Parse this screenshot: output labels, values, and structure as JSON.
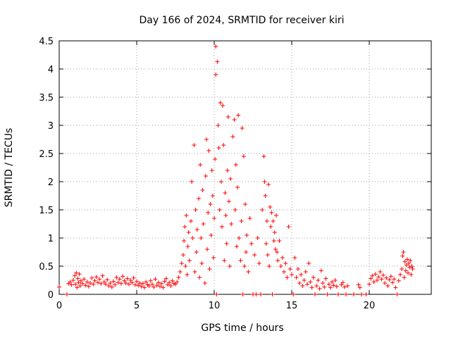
{
  "chart_data": {
    "type": "scatter",
    "title": "Day 166 of 2024, SRMTID for receiver kiri",
    "xlabel": "GPS time / hours",
    "ylabel": "SRMTID / TECUs",
    "xlim": [
      0,
      24
    ],
    "ylim": [
      0,
      4.5
    ],
    "grid": true,
    "marker": "+",
    "color": "#ff0000",
    "x_ticks": [
      0,
      5,
      10,
      15,
      20
    ],
    "x_tick_labels": [
      "0",
      "5",
      "10",
      "15",
      "20"
    ],
    "y_ticks": [
      0,
      0.5,
      1,
      1.5,
      2,
      2.5,
      3,
      3.5,
      4,
      4.5
    ],
    "y_tick_labels": [
      "0",
      "0.5",
      "1",
      "1.5",
      "2",
      "2.5",
      "3",
      "3.5",
      "4",
      "4.5"
    ],
    "series": [
      {
        "name": "SRMTID",
        "points": [
          [
            0.0,
            0.13
          ],
          [
            0.5,
            0.0
          ],
          [
            0.6,
            0.19
          ],
          [
            0.7,
            0.22
          ],
          [
            0.8,
            0.17
          ],
          [
            0.9,
            0.25
          ],
          [
            1.0,
            0.33
          ],
          [
            1.05,
            0.18
          ],
          [
            1.1,
            0.38
          ],
          [
            1.15,
            0.12
          ],
          [
            1.2,
            0.28
          ],
          [
            1.25,
            0.21
          ],
          [
            1.3,
            0.36
          ],
          [
            1.35,
            0.15
          ],
          [
            1.4,
            0.24
          ],
          [
            1.5,
            0.19
          ],
          [
            1.6,
            0.27
          ],
          [
            1.7,
            0.16
          ],
          [
            1.8,
            0.22
          ],
          [
            1.9,
            0.14
          ],
          [
            2.0,
            0.2
          ],
          [
            2.1,
            0.29
          ],
          [
            2.2,
            0.18
          ],
          [
            2.3,
            0.24
          ],
          [
            2.4,
            0.31
          ],
          [
            2.5,
            0.21
          ],
          [
            2.6,
            0.27
          ],
          [
            2.7,
            0.19
          ],
          [
            2.8,
            0.33
          ],
          [
            2.9,
            0.22
          ],
          [
            3.0,
            0.18
          ],
          [
            3.1,
            0.26
          ],
          [
            3.2,
            0.15
          ],
          [
            3.3,
            0.2
          ],
          [
            3.4,
            0.13
          ],
          [
            3.5,
            0.23
          ],
          [
            3.6,
            0.17
          ],
          [
            3.7,
            0.3
          ],
          [
            3.8,
            0.21
          ],
          [
            3.9,
            0.27
          ],
          [
            4.0,
            0.19
          ],
          [
            4.1,
            0.32
          ],
          [
            4.2,
            0.24
          ],
          [
            4.3,
            0.2
          ],
          [
            4.4,
            0.28
          ],
          [
            4.5,
            0.18
          ],
          [
            4.6,
            0.25
          ],
          [
            4.7,
            0.21
          ],
          [
            4.8,
            0.29
          ],
          [
            4.9,
            0.17
          ],
          [
            5.0,
            0.23
          ],
          [
            5.1,
            0.16
          ],
          [
            5.2,
            0.2
          ],
          [
            5.3,
            0.14
          ],
          [
            5.4,
            0.19
          ],
          [
            5.5,
            0.12
          ],
          [
            5.6,
            0.22
          ],
          [
            5.7,
            0.17
          ],
          [
            5.8,
            0.15
          ],
          [
            5.9,
            0.24
          ],
          [
            6.0,
            0.18
          ],
          [
            6.1,
            0.13
          ],
          [
            6.2,
            0.27
          ],
          [
            6.3,
            0.16
          ],
          [
            6.4,
            0.21
          ],
          [
            6.5,
            0.14
          ],
          [
            6.6,
            0.19
          ],
          [
            6.7,
            0.12
          ],
          [
            6.8,
            0.23
          ],
          [
            6.9,
            0.28
          ],
          [
            7.0,
            0.17
          ],
          [
            7.1,
            0.21
          ],
          [
            7.2,
            0.15
          ],
          [
            7.3,
            0.24
          ],
          [
            7.4,
            0.19
          ],
          [
            7.5,
            0.18
          ],
          [
            7.6,
            0.22
          ],
          [
            7.7,
            0.3
          ],
          [
            7.8,
            0.4
          ],
          [
            7.9,
            0.55
          ],
          [
            8.0,
            0.7
          ],
          [
            8.05,
            0.95
          ],
          [
            8.1,
            1.2
          ],
          [
            8.15,
            0.5
          ],
          [
            8.2,
            1.4
          ],
          [
            8.25,
            0.35
          ],
          [
            8.3,
            0.85
          ],
          [
            8.35,
            1.1
          ],
          [
            8.4,
            0.6
          ],
          [
            8.5,
            1.3
          ],
          [
            8.55,
            2.0
          ],
          [
            8.6,
            1.0
          ],
          [
            8.7,
            2.65
          ],
          [
            8.75,
            0.4
          ],
          [
            8.8,
            1.5
          ],
          [
            8.85,
            0.75
          ],
          [
            8.9,
            1.15
          ],
          [
            9.0,
            1.7
          ],
          [
            9.05,
            0.3
          ],
          [
            9.1,
            2.3
          ],
          [
            9.15,
            1.0
          ],
          [
            9.2,
            0.55
          ],
          [
            9.25,
            1.85
          ],
          [
            9.3,
            1.25
          ],
          [
            9.4,
            0.2
          ],
          [
            9.45,
            2.1
          ],
          [
            9.5,
            2.75
          ],
          [
            9.55,
            0.8
          ],
          [
            9.6,
            1.45
          ],
          [
            9.65,
            2.55
          ],
          [
            9.7,
            0.45
          ],
          [
            9.75,
            1.6
          ],
          [
            9.8,
            1.05
          ],
          [
            9.85,
            2.2
          ],
          [
            9.9,
            1.75
          ],
          [
            9.95,
            0.65
          ],
          [
            10.0,
            1.35
          ],
          [
            10.05,
            2.4
          ],
          [
            10.1,
            4.4
          ],
          [
            10.1,
            3.9
          ],
          [
            10.15,
            0.0
          ],
          [
            10.2,
            4.13
          ],
          [
            10.25,
            3.0
          ],
          [
            10.3,
            2.6
          ],
          [
            10.35,
            1.5
          ],
          [
            10.4,
            3.4
          ],
          [
            10.45,
            2.0
          ],
          [
            10.5,
            1.2
          ],
          [
            10.55,
            3.35
          ],
          [
            10.6,
            2.65
          ],
          [
            10.65,
            0.6
          ],
          [
            10.7,
            1.8
          ],
          [
            10.75,
            1.4
          ],
          [
            10.8,
            0.9
          ],
          [
            10.85,
            2.2
          ],
          [
            10.9,
            3.15
          ],
          [
            10.95,
            1.65
          ],
          [
            11.0,
            0.5
          ],
          [
            11.05,
            2.05
          ],
          [
            11.1,
            1.25
          ],
          [
            11.2,
            2.8
          ],
          [
            11.3,
            3.1
          ],
          [
            11.35,
            1.5
          ],
          [
            11.4,
            2.3
          ],
          [
            11.45,
            0.85
          ],
          [
            11.5,
            1.9
          ],
          [
            11.55,
            3.18
          ],
          [
            11.6,
            1.0
          ],
          [
            11.7,
            0.6
          ],
          [
            11.75,
            1.3
          ],
          [
            11.8,
            2.95
          ],
          [
            11.85,
            0.0
          ],
          [
            11.9,
            2.45
          ],
          [
            11.95,
            0.5
          ],
          [
            12.0,
            1.6
          ],
          [
            12.05,
            0.75
          ],
          [
            12.1,
            1.05
          ],
          [
            12.2,
            0.4
          ],
          [
            12.3,
            1.35
          ],
          [
            12.4,
            0.9
          ],
          [
            12.5,
            0.0
          ],
          [
            12.6,
            0.7
          ],
          [
            12.7,
            0.0
          ],
          [
            12.8,
            1.0
          ],
          [
            12.9,
            0.55
          ],
          [
            13.0,
            0.0
          ],
          [
            13.1,
            1.5
          ],
          [
            13.2,
            2.45
          ],
          [
            13.25,
            2.0
          ],
          [
            13.3,
            1.75
          ],
          [
            13.35,
            0.9
          ],
          [
            13.4,
            1.3
          ],
          [
            13.45,
            0.7
          ],
          [
            13.5,
            1.95
          ],
          [
            13.55,
            0.5
          ],
          [
            13.6,
            1.55
          ],
          [
            13.65,
            1.2
          ],
          [
            13.7,
            1.45
          ],
          [
            13.75,
            0.0
          ],
          [
            13.8,
            1.3
          ],
          [
            13.85,
            0.95
          ],
          [
            13.9,
            1.1
          ],
          [
            13.95,
            0.8
          ],
          [
            14.0,
            1.4
          ],
          [
            14.05,
            0.75
          ],
          [
            14.1,
            0.6
          ],
          [
            14.2,
            0.95
          ],
          [
            14.3,
            0.5
          ],
          [
            14.4,
            0.65
          ],
          [
            14.5,
            0.4
          ],
          [
            14.6,
            0.55
          ],
          [
            14.7,
            0.3
          ],
          [
            14.8,
            1.2
          ],
          [
            14.9,
            0.45
          ],
          [
            15.0,
            0.35
          ],
          [
            15.1,
            0.0
          ],
          [
            15.2,
            0.65
          ],
          [
            15.3,
            0.3
          ],
          [
            15.4,
            0.45
          ],
          [
            15.5,
            0.2
          ],
          [
            15.6,
            0.35
          ],
          [
            15.7,
            0.15
          ],
          [
            15.8,
            0.25
          ],
          [
            15.9,
            0.4
          ],
          [
            16.0,
            0.18
          ],
          [
            16.1,
            0.55
          ],
          [
            16.2,
            0.22
          ],
          [
            16.3,
            0.12
          ],
          [
            16.4,
            0.3
          ],
          [
            16.5,
            0.0
          ],
          [
            16.6,
            0.15
          ],
          [
            16.7,
            0.25
          ],
          [
            16.8,
            0.1
          ],
          [
            16.9,
            0.42
          ],
          [
            17.0,
            0.2
          ],
          [
            17.1,
            0.13
          ],
          [
            17.2,
            0.28
          ],
          [
            17.3,
            0.0
          ],
          [
            17.4,
            0.18
          ],
          [
            17.5,
            0.12
          ],
          [
            17.6,
            0.22
          ],
          [
            17.7,
            0.16
          ],
          [
            17.8,
            0.25
          ],
          [
            17.9,
            0.14
          ],
          [
            18.0,
            0.0
          ],
          [
            18.2,
            0.17
          ],
          [
            18.3,
            0.21
          ],
          [
            18.4,
            0.13
          ],
          [
            18.5,
            0.0
          ],
          [
            18.6,
            0.15
          ],
          [
            19.0,
            0.0
          ],
          [
            19.3,
            0.17
          ],
          [
            19.4,
            0.12
          ],
          [
            19.5,
            0.0
          ],
          [
            19.8,
            0.0
          ],
          [
            20.0,
            0.18
          ],
          [
            20.1,
            0.28
          ],
          [
            20.2,
            0.33
          ],
          [
            20.3,
            0.22
          ],
          [
            20.4,
            0.36
          ],
          [
            20.5,
            0.25
          ],
          [
            20.6,
            0.31
          ],
          [
            20.7,
            0.4
          ],
          [
            20.8,
            0.27
          ],
          [
            20.9,
            0.34
          ],
          [
            21.0,
            0.2
          ],
          [
            21.1,
            0.29
          ],
          [
            21.2,
            0.15
          ],
          [
            21.3,
            0.26
          ],
          [
            21.4,
            0.32
          ],
          [
            21.5,
            0.21
          ],
          [
            21.6,
            0.27
          ],
          [
            21.7,
            0.12
          ],
          [
            21.8,
            0.0
          ],
          [
            21.9,
            0.24
          ],
          [
            22.0,
            0.35
          ],
          [
            22.1,
            0.45
          ],
          [
            22.15,
            0.68
          ],
          [
            22.2,
            0.75
          ],
          [
            22.25,
            0.3
          ],
          [
            22.3,
            0.58
          ],
          [
            22.35,
            0.42
          ],
          [
            22.4,
            0.52
          ],
          [
            22.45,
            0.62
          ],
          [
            22.5,
            0.38
          ],
          [
            22.55,
            0.55
          ],
          [
            22.6,
            0.48
          ],
          [
            22.65,
            0.6
          ],
          [
            22.7,
            0.35
          ],
          [
            22.75,
            0.5
          ],
          [
            22.8,
            0.45
          ]
        ]
      }
    ]
  }
}
